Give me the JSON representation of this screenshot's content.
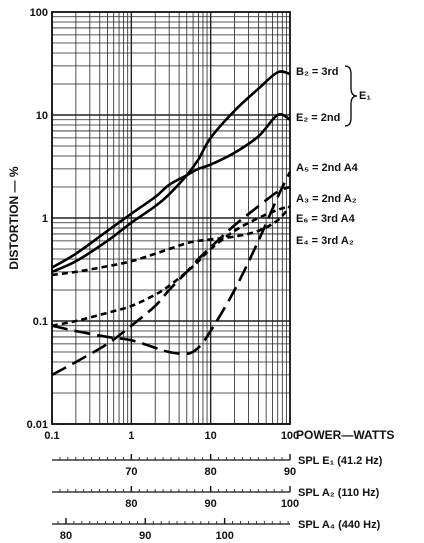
{
  "chart_data": {
    "type": "line",
    "ylabel": "DISTORTION — %",
    "xlabel": "POWER—WATTS",
    "x_scale": "log",
    "y_scale": "log",
    "xlim": [
      0.1,
      100
    ],
    "ylim": [
      0.01,
      100
    ],
    "grid": true,
    "x_ticks": [
      {
        "value": 0.1,
        "label": "0.1"
      },
      {
        "value": 1,
        "label": "1"
      },
      {
        "value": 10,
        "label": "10"
      },
      {
        "value": 100,
        "label": "100"
      }
    ],
    "y_ticks": [
      {
        "value": 0.01,
        "label": "0.01"
      },
      {
        "value": 0.1,
        "label": "0.1"
      },
      {
        "value": 1,
        "label": "1"
      },
      {
        "value": 10,
        "label": "10"
      },
      {
        "value": 100,
        "label": "100"
      }
    ],
    "series": [
      {
        "name": "B₂ = 3rd",
        "style": "solid",
        "x": [
          0.1,
          0.2,
          0.5,
          1,
          2,
          3,
          5,
          7,
          10,
          20,
          40,
          70,
          100
        ],
        "y": [
          0.3,
          0.38,
          0.6,
          0.9,
          1.3,
          1.7,
          2.6,
          3.7,
          6,
          11,
          18,
          26,
          25
        ]
      },
      {
        "name": "E₂ = 2nd",
        "style": "solid",
        "x": [
          0.1,
          0.2,
          0.5,
          1,
          2,
          3,
          5,
          7,
          10,
          20,
          40,
          70,
          100
        ],
        "y": [
          0.33,
          0.45,
          0.75,
          1.1,
          1.6,
          2.1,
          2.6,
          3,
          3.3,
          4.3,
          6.2,
          10,
          9
        ]
      },
      {
        "name": "A₅ = 2nd A4",
        "style": "long-dash",
        "x": [
          0.1,
          0.2,
          0.5,
          1,
          2,
          3,
          5,
          7,
          10,
          20,
          40,
          70,
          100
        ],
        "y": [
          0.09,
          0.08,
          0.07,
          0.065,
          0.055,
          0.05,
          0.048,
          0.055,
          0.08,
          0.2,
          0.6,
          1.6,
          2.8
        ]
      },
      {
        "name": "A₃ = 2nd A₂",
        "style": "long-dash",
        "x": [
          0.1,
          0.2,
          0.5,
          1,
          2,
          3,
          5,
          7,
          10,
          20,
          40,
          70,
          100
        ],
        "y": [
          0.03,
          0.04,
          0.06,
          0.09,
          0.14,
          0.2,
          0.3,
          0.4,
          0.52,
          0.85,
          1.3,
          1.8,
          2.0
        ]
      },
      {
        "name": "E₆ = 3rd A4",
        "style": "short-dash",
        "x": [
          0.1,
          0.2,
          0.5,
          1,
          2,
          3,
          5,
          7,
          10,
          20,
          40,
          70,
          100
        ],
        "y": [
          0.28,
          0.3,
          0.34,
          0.38,
          0.45,
          0.5,
          0.57,
          0.6,
          0.62,
          0.66,
          0.75,
          0.95,
          1.3
        ]
      },
      {
        "name": "E₄ = 3rd A₂",
        "style": "short-dash",
        "x": [
          0.1,
          0.2,
          0.5,
          1,
          2,
          3,
          5,
          7,
          10,
          20,
          40,
          70,
          100
        ],
        "y": [
          0.09,
          0.1,
          0.12,
          0.14,
          0.18,
          0.22,
          0.3,
          0.38,
          0.5,
          0.75,
          1.0,
          1.2,
          1.3
        ]
      }
    ],
    "series_group_label": "E₁",
    "spl_scales": [
      {
        "label": "SPL E₁ (41.2 Hz)",
        "ticks": [
          {
            "value": 70,
            "x": 1
          },
          {
            "value": 80,
            "x": 10
          },
          {
            "value": 90,
            "x": 100
          }
        ]
      },
      {
        "label": "SPL A₂ (110 Hz)",
        "ticks": [
          {
            "value": 80,
            "x": 1
          },
          {
            "value": 90,
            "x": 10
          },
          {
            "value": 100,
            "x": 100
          }
        ]
      },
      {
        "label": "SPL A₄ (440 Hz)",
        "ticks": [
          {
            "value": 80,
            "x": 0.15
          },
          {
            "value": 90,
            "x": 1.5
          },
          {
            "value": 100,
            "x": 15
          }
        ]
      }
    ]
  }
}
